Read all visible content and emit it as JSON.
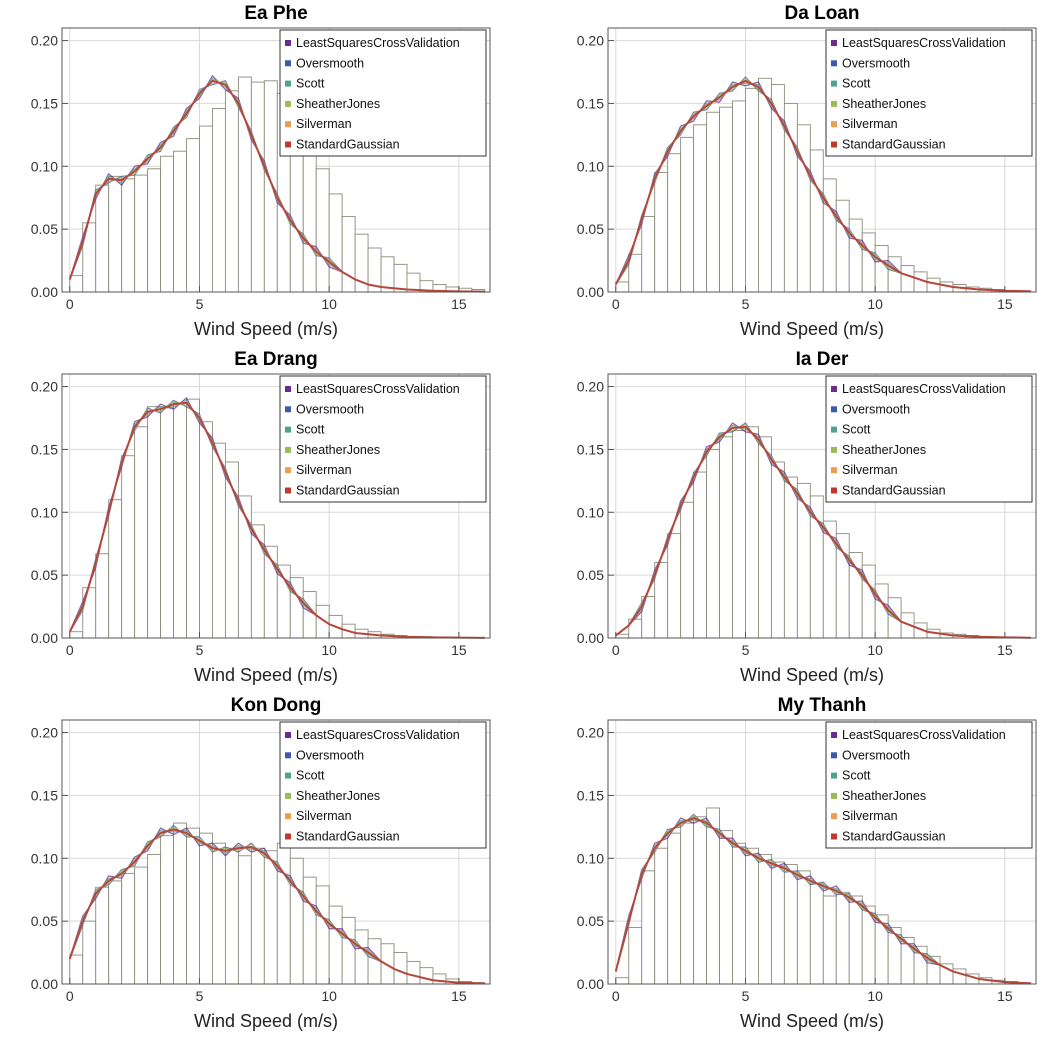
{
  "figure": {
    "xlabel": "Wind Speed (m/s)",
    "x_ticks": [
      0,
      5,
      10,
      15
    ],
    "x_tick_labels": [
      "0",
      "5",
      "10",
      "15"
    ],
    "y_ticks": [
      0,
      0.05,
      0.1,
      0.15,
      0.2
    ],
    "y_tick_labels": [
      "0.00",
      "0.05",
      "0.10",
      "0.15",
      "0.20"
    ],
    "legend": [
      {
        "label": "LeastSquaresCrossValidation",
        "color": "#6b2c91"
      },
      {
        "label": "Oversmooth",
        "color": "#3b5ba9"
      },
      {
        "label": "Scott",
        "color": "#4fa38e"
      },
      {
        "label": "SheatherJones",
        "color": "#9bbb59"
      },
      {
        "label": "Silverman",
        "color": "#e8a050"
      },
      {
        "label": "StandardGaussian",
        "color": "#c0392b"
      }
    ],
    "curve_color": "#b5473a",
    "bar_stroke": "#8c8c7a"
  },
  "chart_data": [
    {
      "type": "bar",
      "title": "Ea Phe",
      "xlabel": "Wind Speed (m/s)",
      "ylabel": "",
      "xlim": [
        -0.3,
        16.2
      ],
      "ylim": [
        0,
        0.21
      ],
      "bin_width": 0.5,
      "bin_start": 0,
      "values": [
        0.013,
        0.055,
        0.085,
        0.092,
        0.09,
        0.093,
        0.098,
        0.108,
        0.112,
        0.122,
        0.132,
        0.146,
        0.16,
        0.171,
        0.167,
        0.168,
        0.158,
        0.145,
        0.128,
        0.098,
        0.078,
        0.06,
        0.046,
        0.035,
        0.028,
        0.022,
        0.015,
        0.009,
        0.006,
        0.004,
        0.003,
        0.002,
        0.001
      ],
      "kde_x": [
        0,
        0.5,
        1,
        1.5,
        2,
        2.5,
        3,
        3.5,
        4,
        4.5,
        5,
        5.5,
        6,
        6.5,
        7,
        7.5,
        8,
        8.5,
        9,
        9.5,
        10,
        10.5,
        11,
        11.5,
        12,
        13,
        14,
        15,
        16
      ],
      "kde_y": [
        0.01,
        0.04,
        0.078,
        0.09,
        0.089,
        0.096,
        0.106,
        0.115,
        0.128,
        0.142,
        0.158,
        0.168,
        0.165,
        0.15,
        0.125,
        0.1,
        0.075,
        0.057,
        0.043,
        0.032,
        0.024,
        0.016,
        0.01,
        0.006,
        0.004,
        0.002,
        0.001,
        0.0005,
        0.0003
      ]
    },
    {
      "type": "bar",
      "title": "Da Loan",
      "xlabel": "Wind Speed (m/s)",
      "ylabel": "",
      "xlim": [
        -0.3,
        16.2
      ],
      "ylim": [
        0,
        0.21
      ],
      "bin_width": 0.5,
      "bin_start": 0,
      "values": [
        0.008,
        0.03,
        0.06,
        0.095,
        0.11,
        0.123,
        0.133,
        0.143,
        0.147,
        0.152,
        0.162,
        0.17,
        0.165,
        0.15,
        0.133,
        0.113,
        0.09,
        0.073,
        0.058,
        0.047,
        0.037,
        0.028,
        0.021,
        0.016,
        0.011,
        0.008,
        0.006,
        0.004,
        0.003,
        0.002,
        0.001,
        0.001,
        0.0005
      ],
      "kde_x": [
        0,
        0.5,
        1,
        1.5,
        2,
        2.5,
        3,
        3.5,
        4,
        4.5,
        5,
        5.5,
        6,
        6.5,
        7,
        7.5,
        8,
        8.5,
        9,
        9.5,
        10,
        10.5,
        11,
        12,
        13,
        14,
        15,
        16
      ],
      "kde_y": [
        0.006,
        0.025,
        0.058,
        0.09,
        0.112,
        0.128,
        0.14,
        0.148,
        0.155,
        0.163,
        0.168,
        0.163,
        0.15,
        0.132,
        0.112,
        0.092,
        0.075,
        0.06,
        0.047,
        0.037,
        0.028,
        0.021,
        0.015,
        0.008,
        0.004,
        0.002,
        0.001,
        0.0005
      ]
    },
    {
      "type": "bar",
      "title": "Ea Drang",
      "xlabel": "Wind Speed (m/s)",
      "ylabel": "",
      "xlim": [
        -0.3,
        16.2
      ],
      "ylim": [
        0,
        0.21
      ],
      "bin_width": 0.5,
      "bin_start": 0,
      "values": [
        0.005,
        0.04,
        0.067,
        0.11,
        0.145,
        0.168,
        0.184,
        0.183,
        0.187,
        0.19,
        0.172,
        0.155,
        0.14,
        0.113,
        0.09,
        0.073,
        0.058,
        0.048,
        0.037,
        0.026,
        0.018,
        0.011,
        0.007,
        0.005,
        0.003,
        0.002,
        0.001,
        0.001,
        0.0005,
        0.0005,
        0.0003
      ],
      "kde_x": [
        0,
        0.5,
        1,
        1.5,
        2,
        2.5,
        3,
        3.5,
        4,
        4.5,
        5,
        5.5,
        6,
        6.5,
        7,
        7.5,
        8,
        8.5,
        9,
        9.5,
        10,
        10.5,
        11,
        12,
        13,
        14,
        15,
        16
      ],
      "kde_y": [
        0.005,
        0.025,
        0.06,
        0.1,
        0.14,
        0.168,
        0.18,
        0.182,
        0.186,
        0.187,
        0.175,
        0.155,
        0.132,
        0.108,
        0.087,
        0.07,
        0.055,
        0.04,
        0.028,
        0.018,
        0.011,
        0.007,
        0.004,
        0.002,
        0.001,
        0.0005,
        0.0003,
        0.0001
      ]
    },
    {
      "type": "bar",
      "title": "Ia Der",
      "xlabel": "Wind Speed (m/s)",
      "ylabel": "",
      "xlim": [
        -0.3,
        16.2
      ],
      "ylim": [
        0,
        0.21
      ],
      "bin_width": 0.5,
      "bin_start": 0,
      "values": [
        0.003,
        0.015,
        0.033,
        0.06,
        0.083,
        0.108,
        0.132,
        0.15,
        0.16,
        0.165,
        0.168,
        0.16,
        0.14,
        0.128,
        0.123,
        0.113,
        0.093,
        0.083,
        0.068,
        0.058,
        0.043,
        0.032,
        0.02,
        0.012,
        0.007,
        0.004,
        0.003,
        0.002,
        0.001,
        0.0005,
        0.0003
      ],
      "kde_x": [
        0,
        0.5,
        1,
        1.5,
        2,
        2.5,
        3,
        3.5,
        4,
        4.5,
        5,
        5.5,
        6,
        6.5,
        7,
        7.5,
        8,
        8.5,
        9,
        9.5,
        10,
        10.5,
        11,
        12,
        13,
        14,
        15,
        16
      ],
      "kde_y": [
        0.002,
        0.01,
        0.025,
        0.05,
        0.078,
        0.105,
        0.128,
        0.148,
        0.16,
        0.167,
        0.168,
        0.158,
        0.142,
        0.128,
        0.115,
        0.1,
        0.088,
        0.075,
        0.062,
        0.05,
        0.035,
        0.022,
        0.013,
        0.005,
        0.002,
        0.001,
        0.0005,
        0.0002
      ]
    },
    {
      "type": "bar",
      "title": "Kon Dong",
      "xlabel": "Wind Speed (m/s)",
      "ylabel": "",
      "xlim": [
        -0.3,
        16.2
      ],
      "ylim": [
        0,
        0.21
      ],
      "bin_width": 0.5,
      "bin_start": 0,
      "values": [
        0.023,
        0.05,
        0.077,
        0.082,
        0.088,
        0.093,
        0.103,
        0.118,
        0.128,
        0.124,
        0.12,
        0.112,
        0.108,
        0.102,
        0.108,
        0.106,
        0.112,
        0.1,
        0.085,
        0.078,
        0.062,
        0.053,
        0.043,
        0.036,
        0.032,
        0.025,
        0.018,
        0.013,
        0.008,
        0.004,
        0.002,
        0.001,
        0.001
      ],
      "kde_x": [
        0,
        0.5,
        1,
        1.5,
        2,
        2.5,
        3,
        3.5,
        4,
        4.5,
        5,
        5.5,
        6,
        6.5,
        7,
        7.5,
        8,
        8.5,
        9,
        9.5,
        10,
        10.5,
        11,
        11.5,
        12,
        12.5,
        13,
        14,
        15,
        16
      ],
      "kde_y": [
        0.02,
        0.05,
        0.072,
        0.082,
        0.088,
        0.097,
        0.11,
        0.12,
        0.123,
        0.12,
        0.114,
        0.108,
        0.106,
        0.108,
        0.109,
        0.104,
        0.094,
        0.082,
        0.07,
        0.058,
        0.048,
        0.04,
        0.032,
        0.025,
        0.018,
        0.012,
        0.008,
        0.003,
        0.001,
        0.0005
      ]
    },
    {
      "type": "bar",
      "title": "My Thanh",
      "xlabel": "Wind Speed (m/s)",
      "ylabel": "",
      "xlim": [
        -0.3,
        16.2
      ],
      "ylim": [
        0,
        0.21
      ],
      "bin_width": 0.5,
      "bin_start": 0,
      "values": [
        0.005,
        0.045,
        0.09,
        0.108,
        0.12,
        0.128,
        0.133,
        0.14,
        0.122,
        0.112,
        0.108,
        0.103,
        0.097,
        0.095,
        0.09,
        0.08,
        0.07,
        0.073,
        0.07,
        0.062,
        0.055,
        0.045,
        0.037,
        0.03,
        0.022,
        0.016,
        0.012,
        0.008,
        0.005,
        0.003,
        0.002,
        0.001,
        0.001
      ],
      "kde_x": [
        0,
        0.5,
        1,
        1.5,
        2,
        2.5,
        3,
        3.5,
        4,
        4.5,
        5,
        5.5,
        6,
        6.5,
        7,
        7.5,
        8,
        8.5,
        9,
        9.5,
        10,
        10.5,
        11,
        11.5,
        12,
        12.5,
        13,
        14,
        15,
        16
      ],
      "kde_y": [
        0.01,
        0.05,
        0.088,
        0.108,
        0.12,
        0.128,
        0.132,
        0.128,
        0.12,
        0.112,
        0.106,
        0.1,
        0.096,
        0.092,
        0.087,
        0.082,
        0.078,
        0.074,
        0.069,
        0.062,
        0.053,
        0.044,
        0.036,
        0.028,
        0.021,
        0.015,
        0.01,
        0.004,
        0.0015,
        0.0005
      ]
    }
  ]
}
